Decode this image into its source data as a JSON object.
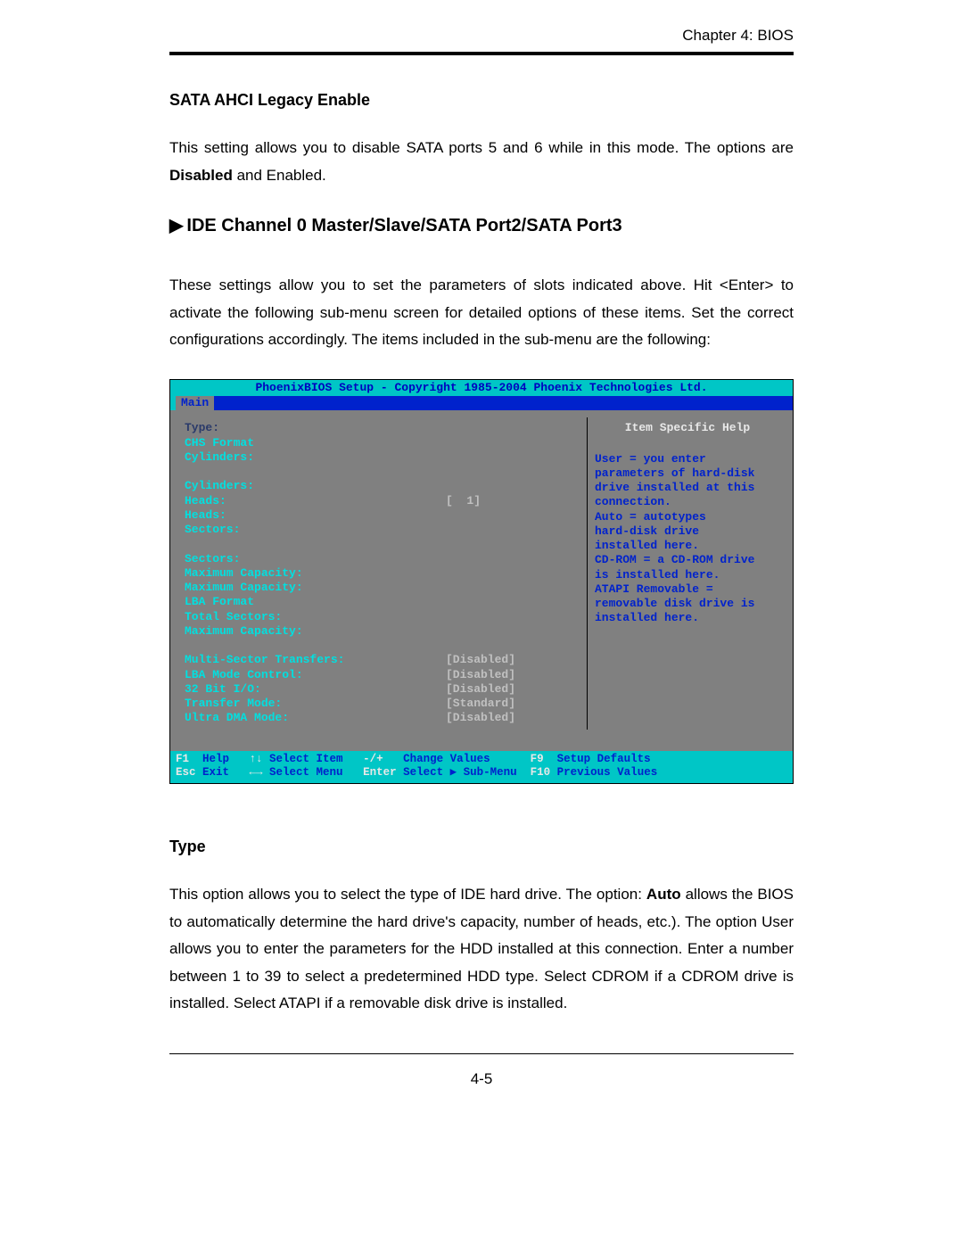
{
  "header": {
    "chapter": "Chapter 4: BIOS"
  },
  "sec1": {
    "heading": "SATA AHCI Legacy Enable",
    "para_pre": "This setting allows you to disable SATA ports 5 and 6 while in this mode. The options are ",
    "para_bold": "Disabled",
    "para_post": " and Enabled."
  },
  "sec2": {
    "heading": "IDE Channel 0 Master/Slave/SATA Port2/SATA Port3",
    "para": "These settings allow you to set the parameters of slots indicated above. Hit <Enter> to activate the following sub-menu screen for detailed options of these items. Set the correct configurations accordingly. The items included in the sub-menu are the following:"
  },
  "bios": {
    "title": "PhoenixBIOS Setup - Copyright 1985-2004 Phoenix Technologies Ltd.",
    "tab": "Main",
    "left_rows_group1": [
      "Type:",
      "CHS Format",
      "Cylinders:",
      "",
      "Cylinders:",
      "Heads:",
      "Heads:",
      "Sectors:",
      "",
      "Sectors:",
      "Maximum Capacity:",
      "Maximum Capacity:",
      "LBA Format",
      "Total Sectors:",
      "Maximum Capacity:"
    ],
    "heads_value": "[  1]",
    "left_rows_group2_labels": [
      "Multi-Sector Transfers:",
      "LBA Mode Control:",
      "32 Bit I/O:",
      "Transfer Mode:",
      "Ultra DMA Mode:"
    ],
    "left_rows_group2_values": [
      "[Disabled]",
      "[Disabled]",
      "[Disabled]",
      "[Standard]",
      "[Disabled]"
    ],
    "help_title": "Item Specific Help",
    "help_lines": [
      "User = you enter",
      "parameters of hard-disk",
      "drive installed at this",
      "connection.",
      "Auto = autotypes",
      "hard-disk drive",
      "installed here.",
      "CD-ROM = a CD-ROM drive",
      "is installed here.",
      "ATAPI Removable =",
      "removable disk drive is",
      "installed here."
    ],
    "footer_line1_k1": "F1",
    "footer_line1_v1": "Help",
    "footer_line1_k2": "↑↓",
    "footer_line1_v2": "Select Item",
    "footer_line1_k3": "-/+",
    "footer_line1_v3": "Change Values",
    "footer_line1_k4": "F9",
    "footer_line1_v4": "Setup Defaults",
    "footer_line2_k1": "Esc",
    "footer_line2_v1": "Exit",
    "footer_line2_k2": "←→",
    "footer_line2_v2": "Select Menu",
    "footer_line2_k3": "Enter",
    "footer_line2_v3": "Select ▶ Sub-Menu",
    "footer_line2_k4": "F10",
    "footer_line2_v4": "Previous Values"
  },
  "sec3": {
    "heading": "Type",
    "para_pre": "This option allows you to select the type of IDE hard drive. The option: ",
    "para_bold": "Auto",
    "para_post": " allows the BIOS to automatically determine the hard drive's capacity, number of heads, etc.). The option User allows you to enter the parameters for the HDD installed at this connection. Enter a number between 1 to 39 to select a predetermined HDD type. Select CDROM if a CDROM drive is installed. Select ATAPI if a removable disk drive is installed."
  },
  "pagenum": "4-5",
  "colors": {
    "bios_teal": "#00c6c6",
    "bios_blue": "#0022cc",
    "bios_gray": "#808080",
    "bios_cyan_text": "#00e0e0"
  }
}
